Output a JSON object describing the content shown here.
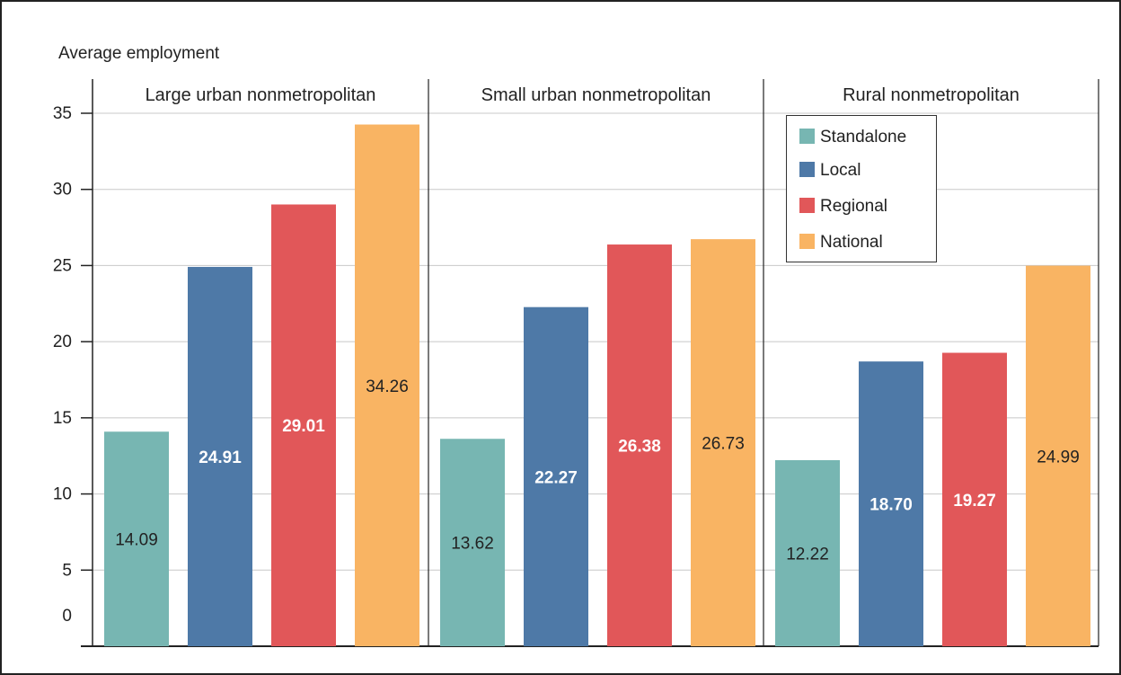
{
  "chart_data": {
    "type": "bar",
    "ylabel": "Average employment",
    "ylim": [
      0,
      35
    ],
    "yticks": [
      0,
      5,
      10,
      15,
      20,
      25,
      30,
      35
    ],
    "grid": true,
    "legend_position": "top-right",
    "series": [
      {
        "name": "Standalone",
        "color": "#77b6b2"
      },
      {
        "name": "Local",
        "color": "#4e79a7"
      },
      {
        "name": "Regional",
        "color": "#e15759"
      },
      {
        "name": "National",
        "color": "#f9b463"
      }
    ],
    "panels": [
      {
        "title": "Large urban nonmetropolitan",
        "values": [
          14.09,
          24.91,
          29.01,
          34.26
        ],
        "labels": [
          "14.09",
          "24.91",
          "29.01",
          "34.26"
        ]
      },
      {
        "title": "Small urban nonmetropolitan",
        "values": [
          13.62,
          22.27,
          26.38,
          26.73
        ],
        "labels": [
          "13.62",
          "22.27",
          "26.38",
          "26.73"
        ]
      },
      {
        "title": "Rural nonmetropolitan",
        "values": [
          12.22,
          18.7,
          19.27,
          24.99
        ],
        "labels": [
          "12.22",
          "18.70",
          "19.27",
          "24.99"
        ]
      }
    ],
    "label_colors": [
      "#222222",
      "#ffffff",
      "#ffffff",
      "#222222"
    ]
  }
}
